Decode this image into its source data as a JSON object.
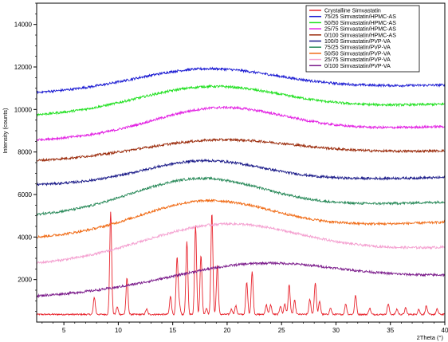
{
  "chart_data": {
    "type": "line",
    "title": "",
    "xlabel": "2Theta (°)",
    "ylabel": "Intensity (counts)",
    "xlim": [
      2.5,
      40
    ],
    "ylim": [
      0,
      15000
    ],
    "x_ticks": [
      5,
      10,
      15,
      20,
      25,
      30,
      35,
      40
    ],
    "y_ticks": [
      2000,
      4000,
      6000,
      8000,
      10000,
      12000,
      14000
    ],
    "grid": false,
    "legend_position": "top-right",
    "series": [
      {
        "name": "Crystalline Simvastatin",
        "color": "#e8252e",
        "baseline": 360,
        "halo": null,
        "peaks": [
          [
            7.8,
            800
          ],
          [
            9.3,
            4800
          ],
          [
            9.9,
            350
          ],
          [
            10.8,
            1700
          ],
          [
            12.6,
            250
          ],
          [
            14.8,
            850
          ],
          [
            15.4,
            2650
          ],
          [
            15.6,
            500
          ],
          [
            16.3,
            3400
          ],
          [
            17.1,
            4200
          ],
          [
            17.6,
            2800
          ],
          [
            18.1,
            300
          ],
          [
            18.6,
            4800
          ],
          [
            19.1,
            2300
          ],
          [
            20.4,
            250
          ],
          [
            20.8,
            400
          ],
          [
            21.8,
            1500
          ],
          [
            22.3,
            2000
          ],
          [
            23.6,
            450
          ],
          [
            24.0,
            450
          ],
          [
            24.9,
            400
          ],
          [
            25.3,
            500
          ],
          [
            25.7,
            1400
          ],
          [
            26.2,
            650
          ],
          [
            27.6,
            700
          ],
          [
            28.1,
            1500
          ],
          [
            28.5,
            600
          ],
          [
            29.5,
            300
          ],
          [
            30.9,
            500
          ],
          [
            31.8,
            900
          ],
          [
            33.1,
            300
          ],
          [
            34.8,
            500
          ],
          [
            35.6,
            250
          ],
          [
            36.4,
            300
          ],
          [
            37.6,
            250
          ],
          [
            38.3,
            400
          ],
          [
            39.3,
            250
          ]
        ]
      },
      {
        "name": "75/25 Simvastatin/HPMC-AS",
        "color": "#1a1ad2",
        "baseline": 10750,
        "end": 11150,
        "halo": [
          18.0,
          6.5,
          1000
        ],
        "peaks": []
      },
      {
        "name": "50/50 Simvastatin/HPMC-AS",
        "color": "#1fe01f",
        "baseline": 9700,
        "end": 10250,
        "halo": [
          18.3,
          6.5,
          1150
        ],
        "peaks": []
      },
      {
        "name": "25/75 Simvastatin/HPMC-AS",
        "color": "#e21ee2",
        "baseline": 8550,
        "end": 9200,
        "halo": [
          19.2,
          6.0,
          1250
        ],
        "peaks": []
      },
      {
        "name": "0/100 Simvastatin/HPMC-AS",
        "color": "#9a2a0a",
        "baseline": 7550,
        "end": 8050,
        "halo": [
          19.0,
          7.0,
          800
        ],
        "peaks": []
      },
      {
        "name": "100/0 Simvastatin/PVP-VA",
        "color": "#1a1a88",
        "baseline": 6450,
        "end": 6800,
        "halo": [
          17.8,
          5.5,
          1000
        ],
        "peaks": []
      },
      {
        "name": "75/25 Simvastatin/PVP-VA",
        "color": "#2a8a5a",
        "baseline": 5000,
        "end": 5650,
        "halo": [
          17.3,
          6.0,
          1500
        ],
        "peaks": []
      },
      {
        "name": "50/50 Simvastatin/PVP-VA",
        "color": "#f06a14",
        "baseline": 3950,
        "end": 4700,
        "halo": [
          18.0,
          6.0,
          1450
        ],
        "peaks": []
      },
      {
        "name": "25/75 Simvastatin/PVP-VA",
        "color": "#f4a0d0",
        "baseline": 2700,
        "end": 3500,
        "halo": [
          19.5,
          7.0,
          1550
        ],
        "peaks": []
      },
      {
        "name": "0/100 Simvastatin/PVP-VA",
        "color": "#7a1a8a",
        "baseline": 1200,
        "end": 2150,
        "halo": [
          22.5,
          7.5,
          1050
        ],
        "peaks": []
      }
    ]
  }
}
